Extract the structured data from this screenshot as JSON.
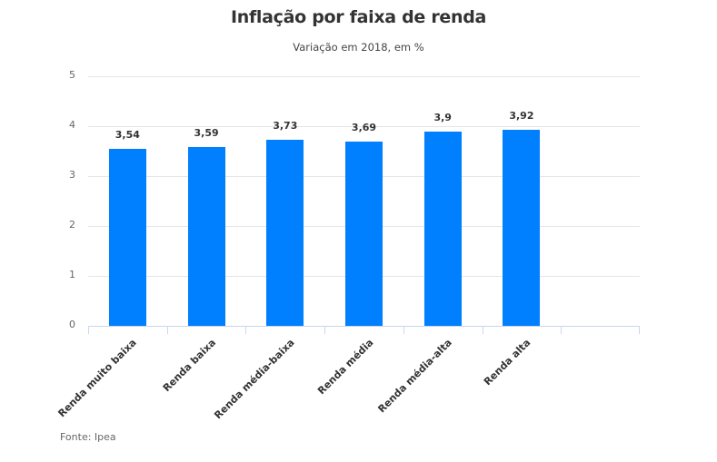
{
  "header": {
    "title": "Inflação por faixa de renda",
    "subtitle": "Variação em 2018, em %"
  },
  "footer": {
    "source": "Fonte: Ipea"
  },
  "colors": {
    "bar": "#0080ff",
    "grid": "#e6e6e6",
    "axis": "#ccd6eb",
    "title": "#333333"
  },
  "chart_data": {
    "type": "bar",
    "title": "Inflação por faixa de renda",
    "subtitle": "Variação em 2018, em %",
    "xlabel": "",
    "ylabel": "",
    "categories": [
      "Renda muito baixa",
      "Renda baixa",
      "Renda média-baixa",
      "Renda média",
      "Renda média-alta",
      "Renda alta"
    ],
    "values": [
      3.54,
      3.59,
      3.73,
      3.69,
      3.9,
      3.92
    ],
    "value_labels": [
      "3,54",
      "3,59",
      "3,73",
      "3,69",
      "3,9",
      "3,92"
    ],
    "ylim": [
      0,
      5
    ],
    "yticks": [
      "0",
      "1",
      "2",
      "3",
      "4",
      "5"
    ],
    "grid": true,
    "legend": null,
    "source": "Fonte: Ipea"
  }
}
